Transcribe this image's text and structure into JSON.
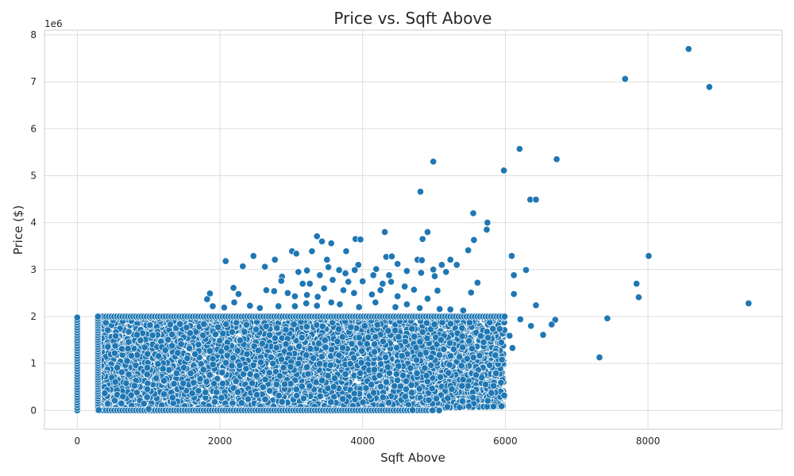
{
  "chart_data": {
    "type": "scatter",
    "title": "Price vs. Sqft Above",
    "xlabel": "Sqft Above",
    "ylabel": "Price ($)",
    "y_offset_label": "1e6",
    "xlim": [
      -460,
      9880
    ],
    "ylim": [
      -400000,
      8100000
    ],
    "x_ticks": [
      0,
      2000,
      4000,
      6000,
      8000
    ],
    "y_ticks": [
      0,
      1000000,
      2000000,
      3000000,
      4000000,
      5000000,
      6000000,
      7000000,
      8000000
    ],
    "y_tick_labels": [
      "0",
      "1",
      "2",
      "3",
      "4",
      "5",
      "6",
      "7",
      "8"
    ],
    "x_tick_labels": [
      "0",
      "2000",
      "4000",
      "6000",
      "8000"
    ],
    "grid": true,
    "marker_color": "#1f77b4",
    "marker_edge_color": "#ffffff",
    "dense_region": {
      "x_range": [
        290,
        5990
      ],
      "y_range": [
        0,
        2000000
      ],
      "note_points": "many overlapping points"
    },
    "zero_sqft_points": {
      "x": 0,
      "y_range": [
        0,
        2000000
      ]
    },
    "series": [
      {
        "points": [
          [
            8570,
            7700000
          ],
          [
            7680,
            7060000
          ],
          [
            8860,
            6890000
          ],
          [
            6200,
            5570000
          ],
          [
            4990,
            5300000
          ],
          [
            6720,
            5350000
          ],
          [
            5980,
            5110000
          ],
          [
            4810,
            4660000
          ],
          [
            6350,
            4490000
          ],
          [
            6430,
            4490000
          ],
          [
            5550,
            4200000
          ],
          [
            5750,
            4000000
          ],
          [
            5740,
            3850000
          ],
          [
            4910,
            3800000
          ],
          [
            4310,
            3800000
          ],
          [
            3360,
            3710000
          ],
          [
            3900,
            3650000
          ],
          [
            3970,
            3640000
          ],
          [
            4840,
            3650000
          ],
          [
            5560,
            3630000
          ],
          [
            3430,
            3600000
          ],
          [
            3560,
            3560000
          ],
          [
            5480,
            3410000
          ],
          [
            3010,
            3390000
          ],
          [
            3770,
            3390000
          ],
          [
            3070,
            3340000
          ],
          [
            3290,
            3390000
          ],
          [
            2470,
            3290000
          ],
          [
            4330,
            3270000
          ],
          [
            4410,
            3280000
          ],
          [
            6090,
            3290000
          ],
          [
            8010,
            3290000
          ],
          [
            2080,
            3180000
          ],
          [
            2770,
            3210000
          ],
          [
            3500,
            3210000
          ],
          [
            4770,
            3210000
          ],
          [
            4830,
            3200000
          ],
          [
            5230,
            3210000
          ],
          [
            3520,
            3050000
          ],
          [
            3940,
            3100000
          ],
          [
            4490,
            3120000
          ],
          [
            5110,
            3100000
          ],
          [
            5320,
            3100000
          ],
          [
            2320,
            3070000
          ],
          [
            2630,
            3060000
          ],
          [
            3220,
            2980000
          ],
          [
            3100,
            2950000
          ],
          [
            3670,
            2990000
          ],
          [
            3890,
            2990000
          ],
          [
            4190,
            3010000
          ],
          [
            4620,
            2970000
          ],
          [
            4820,
            2930000
          ],
          [
            4990,
            3000000
          ],
          [
            5170,
            2950000
          ],
          [
            6120,
            2880000
          ],
          [
            6290,
            2990000
          ],
          [
            2870,
            2850000
          ],
          [
            3400,
            2880000
          ],
          [
            3760,
            2920000
          ],
          [
            4150,
            2880000
          ],
          [
            4370,
            2880000
          ],
          [
            5010,
            2860000
          ],
          [
            2860,
            2760000
          ],
          [
            3160,
            2700000
          ],
          [
            3260,
            2700000
          ],
          [
            3580,
            2780000
          ],
          [
            3800,
            2740000
          ],
          [
            4000,
            2750000
          ],
          [
            4400,
            2740000
          ],
          [
            4280,
            2700000
          ],
          [
            4590,
            2640000
          ],
          [
            5610,
            2720000
          ],
          [
            7840,
            2700000
          ],
          [
            2190,
            2610000
          ],
          [
            2650,
            2560000
          ],
          [
            2760,
            2540000
          ],
          [
            2950,
            2500000
          ],
          [
            3220,
            2460000
          ],
          [
            3460,
            2600000
          ],
          [
            3730,
            2560000
          ],
          [
            4250,
            2560000
          ],
          [
            4720,
            2570000
          ],
          [
            5050,
            2550000
          ],
          [
            5520,
            2510000
          ],
          [
            1860,
            2490000
          ],
          [
            2260,
            2480000
          ],
          [
            3050,
            2430000
          ],
          [
            3370,
            2420000
          ],
          [
            3880,
            2500000
          ],
          [
            4130,
            2470000
          ],
          [
            4490,
            2430000
          ],
          [
            4910,
            2380000
          ],
          [
            6120,
            2480000
          ],
          [
            1820,
            2370000
          ],
          [
            7870,
            2410000
          ],
          [
            2200,
            2300000
          ],
          [
            2420,
            2230000
          ],
          [
            2560,
            2180000
          ],
          [
            2820,
            2220000
          ],
          [
            3050,
            2220000
          ],
          [
            3210,
            2280000
          ],
          [
            3360,
            2230000
          ],
          [
            3560,
            2300000
          ],
          [
            3680,
            2260000
          ],
          [
            3950,
            2200000
          ],
          [
            4180,
            2300000
          ],
          [
            4460,
            2200000
          ],
          [
            4620,
            2260000
          ],
          [
            4800,
            2180000
          ],
          [
            5080,
            2160000
          ],
          [
            5230,
            2150000
          ],
          [
            5410,
            2130000
          ],
          [
            1900,
            2220000
          ],
          [
            2060,
            2190000
          ],
          [
            6430,
            2240000
          ],
          [
            9410,
            2280000
          ],
          [
            6210,
            1940000
          ],
          [
            6700,
            1930000
          ],
          [
            7430,
            1960000
          ],
          [
            6650,
            1830000
          ],
          [
            6360,
            1800000
          ],
          [
            6530,
            1610000
          ],
          [
            6060,
            1590000
          ],
          [
            6100,
            1330000
          ],
          [
            7320,
            1130000
          ],
          [
            5400,
            200000
          ],
          [
            4980,
            3000
          ],
          [
            4700,
            6000
          ],
          [
            300,
            7000
          ],
          [
            1000,
            30000
          ]
        ]
      }
    ]
  }
}
